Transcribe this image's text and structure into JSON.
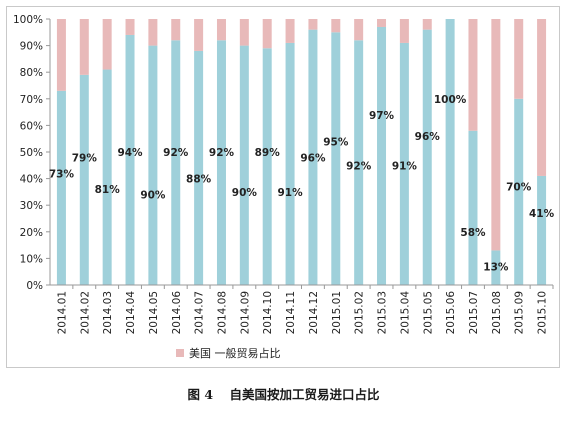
{
  "chart_data": {
    "type": "bar",
    "stacked": true,
    "percent_stacked": true,
    "categories": [
      "2014.01",
      "2014.02",
      "2014.03",
      "2014.04",
      "2014.05",
      "2014.06",
      "2014.07",
      "2014.08",
      "2014.09",
      "2014.10",
      "2014.11",
      "2014.12",
      "2015.01",
      "2015.02",
      "2015.03",
      "2015.04",
      "2015.05",
      "2015.06",
      "2015.07",
      "2015.08",
      "2015.09",
      "2015.10"
    ],
    "series": [
      {
        "values": [
          73,
          79,
          81,
          94,
          90,
          92,
          88,
          92,
          90,
          89,
          91,
          96,
          95,
          92,
          97,
          91,
          96,
          100,
          58,
          13,
          70,
          41
        ],
        "labels": [
          "73%",
          "79%",
          "81%",
          "94%",
          "90%",
          "92%",
          "88%",
          "92%",
          "90%",
          "89%",
          "91%",
          "96%",
          "95%",
          "92%",
          "97%",
          "91%",
          "96%",
          "100%",
          "58%",
          "13%",
          "70%",
          "41%"
        ],
        "color": "#9fd0da"
      },
      {
        "name": "美国 一般贸易占比",
        "values": [
          27,
          21,
          19,
          6,
          10,
          8,
          12,
          8,
          10,
          11,
          9,
          4,
          5,
          8,
          3,
          9,
          4,
          0,
          42,
          87,
          30,
          59
        ],
        "color": "#e8b9b9"
      }
    ],
    "yticks": [
      "0%",
      "10%",
      "20%",
      "30%",
      "40%",
      "50%",
      "60%",
      "70%",
      "80%",
      "90%",
      "100%"
    ],
    "ylim": [
      0,
      100
    ],
    "grid": false,
    "legend_position": "bottom-left",
    "label_positions": [
      0.42,
      0.48,
      0.36,
      0.5,
      0.34,
      0.5,
      0.4,
      0.5,
      0.35,
      0.5,
      0.35,
      0.48,
      0.54,
      0.45,
      0.64,
      0.45,
      0.56,
      0.7,
      0.2,
      0.07,
      0.37,
      0.27
    ]
  },
  "caption": {
    "figure": "图 4",
    "title": "自美国按加工贸易进口占比"
  }
}
